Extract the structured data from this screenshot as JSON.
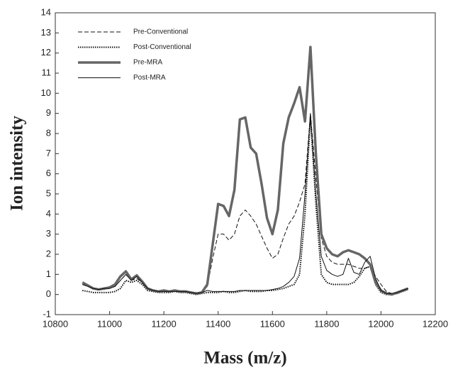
{
  "chart_data": {
    "type": "line",
    "x_label": "Mass (m/z)",
    "y_label": "Ion intensity",
    "x": [
      10900,
      10920,
      10940,
      10960,
      10980,
      11000,
      11020,
      11040,
      11060,
      11080,
      11100,
      11120,
      11140,
      11160,
      11180,
      11200,
      11220,
      11240,
      11260,
      11280,
      11300,
      11320,
      11340,
      11360,
      11380,
      11400,
      11420,
      11440,
      11460,
      11480,
      11500,
      11520,
      11540,
      11560,
      11580,
      11600,
      11620,
      11640,
      11660,
      11680,
      11700,
      11720,
      11740,
      11760,
      11780,
      11800,
      11820,
      11840,
      11860,
      11880,
      11900,
      11920,
      11940,
      11960,
      11980,
      12000,
      12020,
      12040,
      12060,
      12080,
      12100
    ],
    "series": [
      {
        "name": "Pre-Conventional",
        "color": "#111111",
        "line_style": "dashed",
        "line_width": 1,
        "values": [
          0.5,
          0.4,
          0.3,
          0.25,
          0.25,
          0.3,
          0.4,
          0.7,
          1.0,
          0.7,
          0.8,
          0.6,
          0.3,
          0.2,
          0.15,
          0.15,
          0.15,
          0.15,
          0.15,
          0.15,
          0.1,
          0.05,
          0.1,
          0.4,
          1.8,
          3.0,
          3.0,
          2.7,
          3.0,
          3.9,
          4.2,
          3.9,
          3.5,
          2.9,
          2.3,
          1.8,
          2.0,
          2.8,
          3.5,
          3.9,
          4.6,
          5.5,
          9.0,
          5.8,
          2.8,
          1.9,
          1.6,
          1.5,
          1.5,
          1.5,
          1.4,
          1.3,
          1.3,
          1.4,
          0.9,
          0.5,
          0.15,
          0.05,
          0.1,
          0.2,
          0.3
        ]
      },
      {
        "name": "Post-Conventional",
        "color": "#111111",
        "line_style": "dotted",
        "line_width": 2,
        "values": [
          0.2,
          0.15,
          0.1,
          0.1,
          0.1,
          0.1,
          0.15,
          0.3,
          0.7,
          0.6,
          0.7,
          0.5,
          0.2,
          0.15,
          0.1,
          0.1,
          0.1,
          0.15,
          0.1,
          0.1,
          0.05,
          0.0,
          0.05,
          0.1,
          0.1,
          0.1,
          0.15,
          0.1,
          0.1,
          0.15,
          0.2,
          0.15,
          0.15,
          0.15,
          0.2,
          0.2,
          0.25,
          0.3,
          0.4,
          0.5,
          1.0,
          4.0,
          8.8,
          4.5,
          1.0,
          0.6,
          0.5,
          0.5,
          0.5,
          0.5,
          0.6,
          0.9,
          1.3,
          1.4,
          0.5,
          0.1,
          0.0,
          0.0,
          0.05,
          0.15,
          0.25
        ]
      },
      {
        "name": "Pre-MRA",
        "color": "#666666",
        "line_style": "solid",
        "line_width": 3.5,
        "values": [
          0.6,
          0.45,
          0.3,
          0.25,
          0.3,
          0.35,
          0.5,
          0.9,
          1.15,
          0.75,
          0.95,
          0.65,
          0.3,
          0.2,
          0.15,
          0.2,
          0.15,
          0.2,
          0.15,
          0.15,
          0.1,
          0.05,
          0.1,
          0.5,
          2.5,
          4.5,
          4.4,
          3.9,
          5.2,
          8.7,
          8.8,
          7.3,
          7.0,
          5.5,
          3.8,
          3.0,
          4.2,
          7.5,
          8.8,
          9.5,
          10.3,
          8.6,
          12.3,
          7.0,
          3.0,
          2.3,
          2.0,
          1.9,
          2.1,
          2.2,
          2.1,
          2.0,
          1.8,
          1.5,
          0.6,
          0.2,
          0.05,
          0.0,
          0.1,
          0.2,
          0.3
        ]
      },
      {
        "name": "Post-MRA",
        "color": "#111111",
        "line_style": "solid",
        "line_width": 1,
        "values": [
          0.5,
          0.4,
          0.3,
          0.25,
          0.3,
          0.3,
          0.4,
          0.7,
          1.0,
          0.7,
          0.9,
          0.6,
          0.3,
          0.2,
          0.15,
          0.15,
          0.15,
          0.15,
          0.15,
          0.15,
          0.1,
          0.05,
          0.1,
          0.2,
          0.15,
          0.15,
          0.15,
          0.15,
          0.15,
          0.2,
          0.2,
          0.2,
          0.2,
          0.2,
          0.2,
          0.25,
          0.3,
          0.4,
          0.6,
          0.9,
          1.8,
          5.0,
          9.0,
          5.0,
          1.9,
          1.2,
          1.0,
          0.9,
          1.0,
          1.8,
          1.1,
          1.0,
          1.6,
          1.9,
          0.8,
          0.2,
          0.05,
          0.05,
          0.1,
          0.2,
          0.3
        ]
      }
    ],
    "xlim": [
      10800,
      12200
    ],
    "xticks": [
      10800,
      11000,
      11200,
      11400,
      11600,
      11800,
      12000,
      12200
    ],
    "ylim": [
      -1,
      14
    ],
    "yticks": [
      -1,
      0,
      1,
      2,
      3,
      4,
      5,
      6,
      7,
      8,
      9,
      10,
      11,
      12,
      13,
      14
    ],
    "legend": "upper left"
  }
}
